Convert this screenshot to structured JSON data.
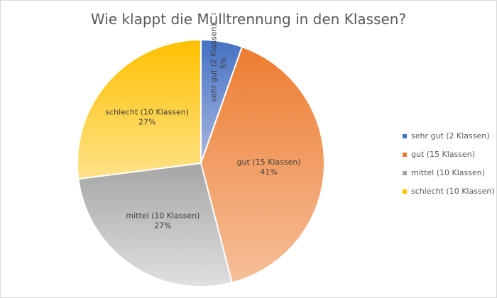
{
  "chart_data": {
    "type": "pie",
    "title": "Wie klappt die Mülltrennung in den Klassen?",
    "slices": [
      {
        "label": "sehr gut (2 Klassen)",
        "value": 2,
        "percent_label": "5%",
        "color": "#4472c4",
        "color_light": "#aab7e0",
        "legend": "sehr gut (2 Klassen)"
      },
      {
        "label": "gut (15 Klassen)",
        "value": 15,
        "percent_label": "41%",
        "color": "#ed7d31",
        "color_light": "#f6bf9a",
        "legend": "gut (15 Klassen)"
      },
      {
        "label": "mittel (10 Klassen)",
        "value": 10,
        "percent_label": "27%",
        "color": "#a5a5a5",
        "color_light": "#e0e0e0",
        "legend": "mittel (10 Klassen)"
      },
      {
        "label": "schlecht (10 Klassen)",
        "value": 10,
        "percent_label": "27%",
        "color": "#ffc000",
        "color_light": "#ffe38a",
        "legend": "schlecht (10 Klassen)"
      }
    ],
    "legend_position": "right"
  }
}
